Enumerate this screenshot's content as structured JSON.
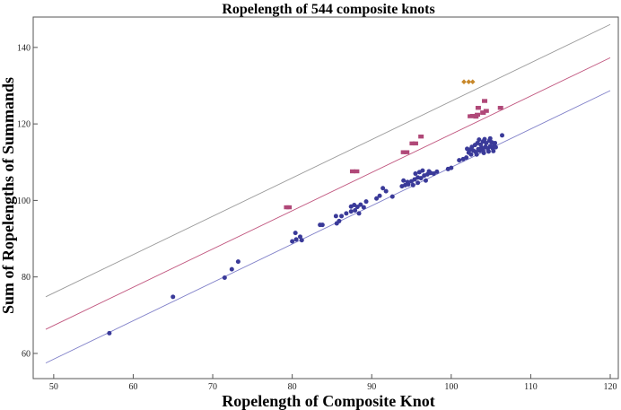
{
  "chart_data": {
    "type": "scatter",
    "title": "Ropelength of 544 composite knots",
    "xlabel": "Ropelength of Composite Knot",
    "ylabel": "Sum of Ropelengths of Summands",
    "xlim": [
      49,
      120
    ],
    "ylim": [
      56,
      147
    ],
    "xticks": [
      "50",
      "60",
      "70",
      "80",
      "90",
      "100",
      "110",
      "120"
    ],
    "yticks": [
      "60",
      "80",
      "100",
      "120",
      "140"
    ],
    "grid": false,
    "frame": true,
    "reference_lines": [
      {
        "color": "#9a9a9a",
        "comment_color_tint": "green",
        "points": [
          [
            49,
            74.8
          ],
          [
            120,
            146.0
          ]
        ]
      },
      {
        "color": "#c0557e",
        "points": [
          [
            49,
            66.3
          ],
          [
            120,
            137.3
          ]
        ]
      },
      {
        "color": "#7f7fc8",
        "points": [
          [
            49,
            57.5
          ],
          [
            120,
            128.7
          ]
        ]
      }
    ],
    "series": [
      {
        "color": "#3a3a99",
        "marker": "circle",
        "points": [
          [
            57.0,
            65.3
          ],
          [
            65.0,
            74.8
          ],
          [
            71.5,
            79.8
          ],
          [
            72.4,
            82.0
          ],
          [
            73.2,
            84.0
          ],
          [
            80.0,
            89.3
          ],
          [
            80.5,
            89.8
          ],
          [
            80.4,
            91.5
          ],
          [
            81.0,
            90.5
          ],
          [
            81.2,
            89.6
          ],
          [
            83.5,
            93.6
          ],
          [
            83.8,
            93.6
          ],
          [
            85.6,
            94.0
          ],
          [
            85.9,
            94.6
          ],
          [
            85.5,
            95.9
          ],
          [
            86.2,
            95.9
          ],
          [
            86.8,
            96.6
          ],
          [
            87.4,
            97.1
          ],
          [
            87.9,
            97.4
          ],
          [
            87.4,
            98.4
          ],
          [
            87.8,
            98.8
          ],
          [
            88.2,
            98.3
          ],
          [
            88.6,
            98.9
          ],
          [
            89.0,
            98.2
          ],
          [
            89.3,
            99.7
          ],
          [
            88.4,
            96.6
          ],
          [
            90.6,
            100.5
          ],
          [
            91.0,
            101.2
          ],
          [
            91.4,
            103.2
          ],
          [
            91.8,
            102.4
          ],
          [
            92.6,
            101.0
          ],
          [
            93.8,
            103.7
          ],
          [
            94.2,
            104.0
          ],
          [
            94.6,
            104.2
          ],
          [
            94.0,
            105.2
          ],
          [
            94.5,
            104.8
          ],
          [
            95.0,
            105.0
          ],
          [
            95.4,
            105.5
          ],
          [
            95.8,
            106.0
          ],
          [
            96.2,
            105.8
          ],
          [
            96.6,
            106.5
          ],
          [
            97.0,
            106.8
          ],
          [
            97.4,
            107.2
          ],
          [
            95.5,
            107.0
          ],
          [
            96.0,
            107.4
          ],
          [
            96.4,
            107.8
          ],
          [
            97.2,
            107.6
          ],
          [
            97.8,
            107.0
          ],
          [
            95.2,
            104.0
          ],
          [
            95.8,
            104.6
          ],
          [
            96.8,
            105.2
          ],
          [
            98.2,
            107.5
          ],
          [
            99.6,
            108.2
          ],
          [
            100.0,
            108.5
          ],
          [
            101.0,
            110.5
          ],
          [
            101.5,
            110.8
          ],
          [
            101.9,
            111.2
          ],
          [
            102.2,
            112.5
          ],
          [
            102.5,
            112.0
          ],
          [
            102.8,
            113.0
          ],
          [
            103.1,
            112.6
          ],
          [
            103.4,
            113.4
          ],
          [
            103.6,
            113.0
          ],
          [
            103.8,
            113.8
          ],
          [
            104.0,
            113.2
          ],
          [
            104.3,
            114.0
          ],
          [
            104.6,
            113.6
          ],
          [
            104.9,
            114.2
          ],
          [
            105.2,
            113.7
          ],
          [
            105.4,
            114.4
          ],
          [
            105.6,
            113.9
          ],
          [
            102.6,
            114.0
          ],
          [
            103.0,
            114.5
          ],
          [
            103.3,
            115.0
          ],
          [
            103.7,
            114.6
          ],
          [
            104.0,
            115.4
          ],
          [
            104.4,
            115.0
          ],
          [
            104.8,
            115.6
          ],
          [
            105.1,
            115.2
          ],
          [
            103.5,
            115.9
          ],
          [
            104.2,
            116.0
          ],
          [
            104.9,
            116.2
          ],
          [
            105.5,
            115.0
          ],
          [
            103.2,
            112.0
          ],
          [
            104.1,
            112.4
          ],
          [
            104.7,
            112.8
          ],
          [
            105.3,
            112.9
          ],
          [
            106.4,
            117.0
          ],
          [
            102.0,
            113.5
          ],
          [
            102.4,
            113.3
          ]
        ]
      },
      {
        "color": "#b04878",
        "marker": "square",
        "points": [
          [
            79.3,
            98.2
          ],
          [
            79.6,
            98.2
          ],
          [
            87.6,
            107.6
          ],
          [
            88.1,
            107.6
          ],
          [
            94.0,
            112.6
          ],
          [
            94.4,
            112.6
          ],
          [
            95.1,
            114.9
          ],
          [
            95.5,
            114.9
          ],
          [
            96.2,
            116.7
          ],
          [
            102.4,
            122.0
          ],
          [
            102.7,
            122.1
          ],
          [
            103.1,
            121.9
          ],
          [
            103.4,
            124.2
          ],
          [
            104.0,
            123.0
          ],
          [
            104.4,
            123.4
          ],
          [
            104.2,
            126.0
          ],
          [
            106.2,
            124.2
          ],
          [
            103.3,
            122.4
          ],
          [
            104.0,
            122.9
          ]
        ]
      },
      {
        "color": "#c8882a",
        "marker": "diamond",
        "points": [
          [
            101.6,
            131.0
          ],
          [
            102.2,
            131.0
          ],
          [
            102.7,
            131.0
          ]
        ]
      }
    ]
  }
}
